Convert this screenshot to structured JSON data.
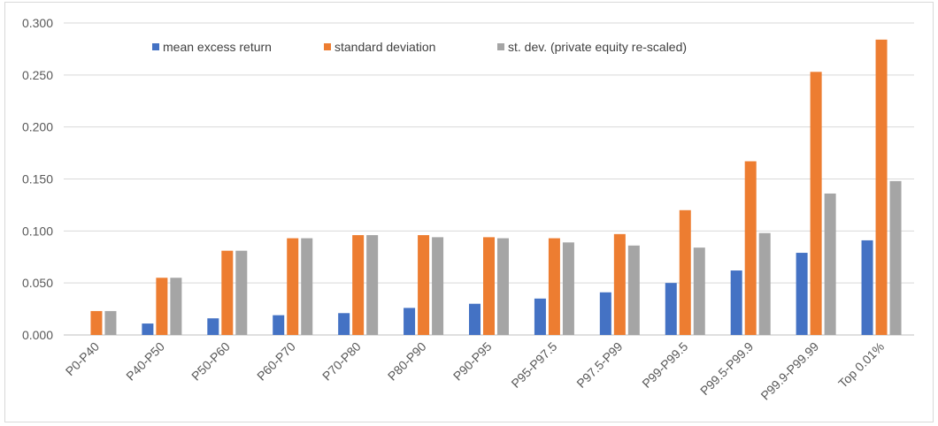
{
  "chart_data": {
    "type": "bar",
    "title": "",
    "xlabel": "",
    "ylabel": "",
    "ylim": [
      0,
      0.3
    ],
    "yticks": [
      "0.000",
      "0.050",
      "0.100",
      "0.150",
      "0.200",
      "0.250",
      "0.300"
    ],
    "grid": true,
    "legend_position": "top-center",
    "categories": [
      "P0-P40",
      "P40-P50",
      "P50-P60",
      "P60-P70",
      "P70-P80",
      "P80-P90",
      "P90-P95",
      "P95-P97.5",
      "P97.5-P99",
      "P99-P99.5",
      "P99.5-P99.9",
      "P99.9-P99.99",
      "Top 0.01%"
    ],
    "series": [
      {
        "name": "mean excess return",
        "color": "#4472c4",
        "values": [
          0.0,
          0.011,
          0.016,
          0.019,
          0.021,
          0.026,
          0.03,
          0.035,
          0.041,
          0.05,
          0.062,
          0.079,
          0.091
        ]
      },
      {
        "name": "standard deviation",
        "color": "#ed7d31",
        "values": [
          0.023,
          0.055,
          0.081,
          0.093,
          0.096,
          0.096,
          0.094,
          0.093,
          0.097,
          0.12,
          0.167,
          0.253,
          0.284
        ]
      },
      {
        "name": "st. dev. (private equity re-scaled)",
        "color": "#a5a5a5",
        "values": [
          0.023,
          0.055,
          0.081,
          0.093,
          0.096,
          0.094,
          0.093,
          0.089,
          0.086,
          0.084,
          0.098,
          0.136,
          0.148
        ]
      }
    ]
  }
}
